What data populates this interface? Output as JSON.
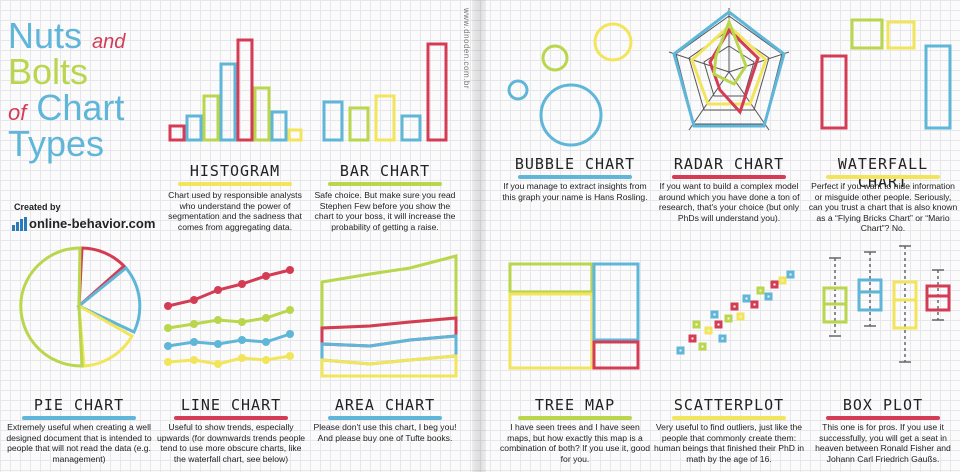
{
  "credit": "www.dnoden.com.br",
  "title": {
    "line1": "Nuts",
    "and": "and",
    "line2": "Bolts",
    "of": "of",
    "line3": "Chart",
    "line4": "Types"
  },
  "created_by": "Created by",
  "logo_text": "online-behavior.com",
  "colors": {
    "blue": "#5fb6d8",
    "green": "#b9d64c",
    "red": "#d43c55",
    "yellow": "#f2e55c"
  },
  "panels": {
    "histogram": {
      "title": "HISTOGRAM",
      "desc": "Chart used by responsible analysts who understand the power of segmentation and the sadness that comes from aggregating data."
    },
    "bar_chart": {
      "title": "BAR CHART",
      "desc": "Safe choice. But make sure you read Stephen Few before you show the chart to your boss, it will increase the probability of getting a raise."
    },
    "bubble_chart": {
      "title": "BUBBLE CHART",
      "desc": "If you manage to extract insights from this graph your name is Hans Rosling."
    },
    "radar_chart": {
      "title": "RADAR CHART",
      "desc": "If you want to build a complex model around which you have done a ton of research, that's your choice (but only PhDs will understand you)."
    },
    "waterfall_chart": {
      "title": "WATERFALL CHART",
      "desc": "Perfect if you want to hide information or misguide other people. Seriously, can you trust a chart that is also known as a “Flying Bricks Chart” or “Mario Chart”? No."
    },
    "pie_chart": {
      "title": "PIE CHART",
      "desc": "Extremely useful when creating a well designed document that is intended to people that will not read the data (e.g. management)"
    },
    "line_chart": {
      "title": "LINE CHART",
      "desc": "Useful to show trends, especially upwards (for downwards trends people tend to use more obscure charts, like the waterfall chart, see below)"
    },
    "area_chart": {
      "title": "AREA CHART",
      "desc": "Please don't use this chart, I beg you! And please buy one of Tufte books."
    },
    "tree_map": {
      "title": "TREE MAP",
      "desc": "I have seen trees and I have seen maps, but how exactly this map is a combination of both? If you use it, good for you."
    },
    "scatterplot": {
      "title": "SCATTERPLOT",
      "desc": "Very useful to find outliers, just like the people that commonly create them: human beings that finished their PhD in math by the age of 16."
    },
    "box_plot": {
      "title": "BOX PLOT",
      "desc": "This one is for pros. If you use it successfully, you will get a seat in heaven between Ronald Fisher and Johann Carl Friedrich Gaußs."
    }
  }
}
